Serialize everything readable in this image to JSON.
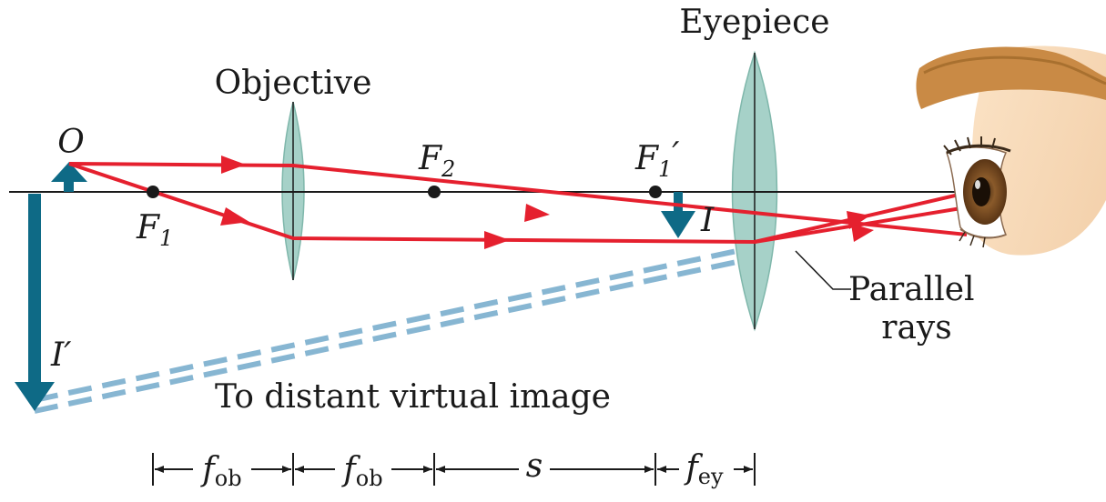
{
  "labels": {
    "eyepiece": "Eyepiece",
    "objective": "Objective",
    "object": "O",
    "f1": "F",
    "f1_sub": "1",
    "f2": "F",
    "f2_sub": "2",
    "f1p": "F",
    "f1p_sub": "1",
    "f1p_prime": "′",
    "image": "I",
    "virtual_image": "I′",
    "parallel_line1": "Parallel",
    "parallel_line2": "rays",
    "virtual_caption": "To distant virtual image"
  },
  "dimensions": [
    {
      "main": "f",
      "sub": "ob"
    },
    {
      "main": "f",
      "sub": "ob"
    },
    {
      "main": "s",
      "sub": ""
    },
    {
      "main": "f",
      "sub": "ey"
    }
  ],
  "colors": {
    "ray": "#e5202e",
    "arrow": "#0e6a86",
    "lens": "#a6d1c8",
    "lens_edge": "#7fb7ab",
    "virtual_ray": "#87b6d2",
    "axis": "#1a1a1a"
  },
  "icons": {
    "eye": "eye-icon"
  }
}
